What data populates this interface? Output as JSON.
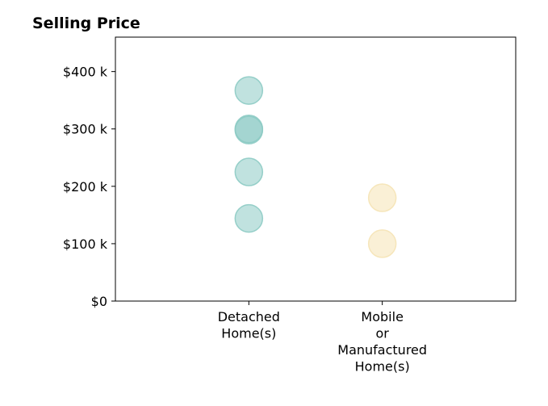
{
  "chart_data": {
    "type": "scatter",
    "title": "Selling Price",
    "xlabel": "",
    "ylabel": "",
    "categories": [
      [
        "Detached",
        "Home(s)"
      ],
      [
        "Mobile",
        "or",
        "Manufactured",
        "Home(s)"
      ]
    ],
    "y_ticks": [
      {
        "value": 0,
        "label": "$0"
      },
      {
        "value": 100000,
        "label": "$100 k"
      },
      {
        "value": 200000,
        "label": "$200 k"
      },
      {
        "value": 300000,
        "label": "$300 k"
      },
      {
        "value": 400000,
        "label": "$400 k"
      }
    ],
    "ylim": [
      0,
      460000
    ],
    "x_range": [
      -1,
      2
    ],
    "grid": false,
    "legend": "none",
    "series": [
      {
        "category_index": 0,
        "color": "#8dcbc4",
        "values": [
          367000,
          300000,
          298000,
          225000,
          144000
        ]
      },
      {
        "category_index": 1,
        "color": "#f5e3b5",
        "values": [
          180000,
          100000
        ]
      }
    ]
  }
}
